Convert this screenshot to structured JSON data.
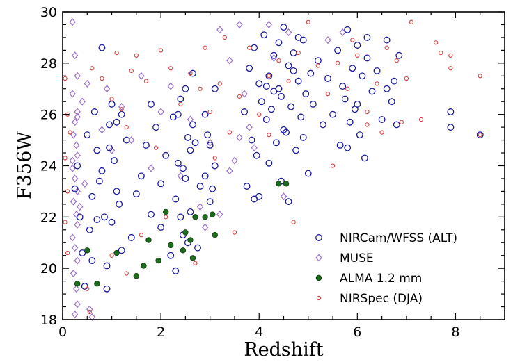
{
  "chart_data": {
    "type": "scatter",
    "title": "",
    "xlabel": "Redshift",
    "ylabel": "F356W",
    "xlim": [
      0,
      9
    ],
    "ylim": [
      18,
      30
    ],
    "x_ticks": [
      0,
      2,
      4,
      6,
      8
    ],
    "y_ticks": [
      18,
      20,
      22,
      24,
      26,
      28,
      30
    ],
    "grid": false,
    "legend_position": "bottom-right",
    "series": [
      {
        "name": "NIRCam/WFSS (ALT)",
        "marker": "open-circle",
        "color": "#1a1aa0",
        "points": [
          [
            0.25,
            23.1
          ],
          [
            0.3,
            24.0
          ],
          [
            0.35,
            22.0
          ],
          [
            0.4,
            20.6
          ],
          [
            0.5,
            25.2
          ],
          [
            0.55,
            21.5
          ],
          [
            0.6,
            22.8
          ],
          [
            0.7,
            24.6
          ],
          [
            0.75,
            23.4
          ],
          [
            0.8,
            28.6
          ],
          [
            0.85,
            22.0
          ],
          [
            0.9,
            20.1
          ],
          [
            0.95,
            25.6
          ],
          [
            1.0,
            26.4
          ],
          [
            1.05,
            24.2
          ],
          [
            1.1,
            23.0
          ],
          [
            1.15,
            22.5
          ],
          [
            1.2,
            20.7
          ],
          [
            1.3,
            25.0
          ],
          [
            1.4,
            21.2
          ],
          [
            0.45,
            19.3
          ],
          [
            0.65,
            26.1
          ],
          [
            0.9,
            19.2
          ],
          [
            1.0,
            21.8
          ],
          [
            1.1,
            25.7
          ],
          [
            0.6,
            20.3
          ],
          [
            0.8,
            23.8
          ],
          [
            0.95,
            24.7
          ],
          [
            1.2,
            26.0
          ],
          [
            0.7,
            21.9
          ],
          [
            1.5,
            22.9
          ],
          [
            1.6,
            23.6
          ],
          [
            1.7,
            24.8
          ],
          [
            1.8,
            22.1
          ],
          [
            1.9,
            25.5
          ],
          [
            2.0,
            21.6
          ],
          [
            2.1,
            24.4
          ],
          [
            2.2,
            20.5
          ],
          [
            2.25,
            25.9
          ],
          [
            2.3,
            22.7
          ],
          [
            2.35,
            24.1
          ],
          [
            2.4,
            26.6
          ],
          [
            2.45,
            21.3
          ],
          [
            2.5,
            23.5
          ],
          [
            2.55,
            25.1
          ],
          [
            2.6,
            22.2
          ],
          [
            2.65,
            27.6
          ],
          [
            2.7,
            24.9
          ],
          [
            2.75,
            20.8
          ],
          [
            2.8,
            23.2
          ],
          [
            2.3,
            19.9
          ],
          [
            2.4,
            22.0
          ],
          [
            2.5,
            27.0
          ],
          [
            2.6,
            24.6
          ],
          [
            2.45,
            23.9
          ],
          [
            2.35,
            26.0
          ],
          [
            2.55,
            21.0
          ],
          [
            2.65,
            25.6
          ],
          [
            2.0,
            23.3
          ],
          [
            1.8,
            26.4
          ],
          [
            2.9,
            26.0
          ],
          [
            3.0,
            24.8
          ],
          [
            3.05,
            23.1
          ],
          [
            3.1,
            27.0
          ],
          [
            3.0,
            22.6
          ],
          [
            2.95,
            25.2
          ],
          [
            3.1,
            24.0
          ],
          [
            2.9,
            23.6
          ],
          [
            3.7,
            26.1
          ],
          [
            3.75,
            23.2
          ],
          [
            3.8,
            27.8
          ],
          [
            3.85,
            25.0
          ],
          [
            3.9,
            28.6
          ],
          [
            3.95,
            24.4
          ],
          [
            4.0,
            27.2
          ],
          [
            4.0,
            22.8
          ],
          [
            4.05,
            26.5
          ],
          [
            3.9,
            22.7
          ],
          [
            4.1,
            29.1
          ],
          [
            4.15,
            25.8
          ],
          [
            4.2,
            27.5
          ],
          [
            4.25,
            26.2
          ],
          [
            4.3,
            28.3
          ],
          [
            4.35,
            24.9
          ],
          [
            4.4,
            27.0
          ],
          [
            4.45,
            26.7
          ],
          [
            4.5,
            29.4
          ],
          [
            4.55,
            25.3
          ],
          [
            4.6,
            27.9
          ],
          [
            4.65,
            26.3
          ],
          [
            4.7,
            28.4
          ],
          [
            4.75,
            24.6
          ],
          [
            4.8,
            27.3
          ],
          [
            4.85,
            25.9
          ],
          [
            4.9,
            28.9
          ],
          [
            4.95,
            26.8
          ],
          [
            5.0,
            23.7
          ],
          [
            5.05,
            27.6
          ],
          [
            4.2,
            24.1
          ],
          [
            4.4,
            28.8
          ],
          [
            4.6,
            22.6
          ],
          [
            4.8,
            29.0
          ],
          [
            4.3,
            26.9
          ],
          [
            4.5,
            25.4
          ],
          [
            4.7,
            27.7
          ],
          [
            4.9,
            25.1
          ],
          [
            4.15,
            27.1
          ],
          [
            4.45,
            23.4
          ],
          [
            5.1,
            26.4
          ],
          [
            5.2,
            28.1
          ],
          [
            5.3,
            25.6
          ],
          [
            5.4,
            27.4
          ],
          [
            5.5,
            26.0
          ],
          [
            5.6,
            28.5
          ],
          [
            5.65,
            24.8
          ],
          [
            5.7,
            27.1
          ],
          [
            5.75,
            26.6
          ],
          [
            5.8,
            29.3
          ],
          [
            5.85,
            25.7
          ],
          [
            5.9,
            27.8
          ],
          [
            5.95,
            26.2
          ],
          [
            6.0,
            28.7
          ],
          [
            6.05,
            25.2
          ],
          [
            6.1,
            27.5
          ],
          [
            6.15,
            24.3
          ],
          [
            6.2,
            28.2
          ],
          [
            6.3,
            26.9
          ],
          [
            6.4,
            27.7
          ],
          [
            6.5,
            25.8
          ],
          [
            6.6,
            28.9
          ],
          [
            6.7,
            26.5
          ],
          [
            6.75,
            27.3
          ],
          [
            6.8,
            25.6
          ],
          [
            6.85,
            28.3
          ],
          [
            6.2,
            29.0
          ],
          [
            5.8,
            24.7
          ],
          [
            6.0,
            26.4
          ],
          [
            6.6,
            27.0
          ],
          [
            7.9,
            26.1
          ],
          [
            7.9,
            25.5
          ],
          [
            8.5,
            25.2
          ]
        ]
      },
      {
        "name": "MUSE",
        "marker": "open-diamond",
        "color": "#9b6fc8",
        "points": [
          [
            0.2,
            29.6
          ],
          [
            0.25,
            28.3
          ],
          [
            0.3,
            27.5
          ],
          [
            0.2,
            26.8
          ],
          [
            0.3,
            26.1
          ],
          [
            0.25,
            25.7
          ],
          [
            0.22,
            25.2
          ],
          [
            0.28,
            24.8
          ],
          [
            0.3,
            24.4
          ],
          [
            0.2,
            23.9
          ],
          [
            0.25,
            23.5
          ],
          [
            0.3,
            23.0
          ],
          [
            0.22,
            22.6
          ],
          [
            0.28,
            22.1
          ],
          [
            0.3,
            21.7
          ],
          [
            0.2,
            21.2
          ],
          [
            0.25,
            20.8
          ],
          [
            0.3,
            20.3
          ],
          [
            0.22,
            19.8
          ],
          [
            0.28,
            19.2
          ],
          [
            0.3,
            18.6
          ],
          [
            0.25,
            18.2
          ],
          [
            0.2,
            24.2
          ],
          [
            0.3,
            25.9
          ],
          [
            0.35,
            22.4
          ],
          [
            0.4,
            26.5
          ],
          [
            0.45,
            23.3
          ],
          [
            0.5,
            27.2
          ],
          [
            0.55,
            18.4
          ],
          [
            0.6,
            18.1
          ],
          [
            0.8,
            25.4
          ],
          [
            0.9,
            27.0
          ],
          [
            1.0,
            24.6
          ],
          [
            1.2,
            26.3
          ],
          [
            1.4,
            25.0
          ],
          [
            1.6,
            27.5
          ],
          [
            1.8,
            23.9
          ],
          [
            2.0,
            26.1
          ],
          [
            2.2,
            27.1
          ],
          [
            2.4,
            23.6
          ],
          [
            2.6,
            25.8
          ],
          [
            2.8,
            22.4
          ],
          [
            3.0,
            24.9
          ],
          [
            3.2,
            29.3
          ],
          [
            3.4,
            28.1
          ],
          [
            3.5,
            24.2
          ],
          [
            3.6,
            25.1
          ],
          [
            3.7,
            26.8
          ],
          [
            3.8,
            25.5
          ],
          [
            3.9,
            24.7
          ],
          [
            3.6,
            29.5
          ],
          [
            4.2,
            29.5
          ],
          [
            4.6,
            29.2
          ],
          [
            4.3,
            28.2
          ],
          [
            4.5,
            22.8
          ],
          [
            5.4,
            28.9
          ],
          [
            5.7,
            29.2
          ],
          [
            3.4,
            23.8
          ],
          [
            3.2,
            22.1
          ],
          [
            2.9,
            21.6
          ]
        ]
      },
      {
        "name": "ALMA 1.2 mm",
        "marker": "filled-circle",
        "color": "#1e6b1e",
        "points": [
          [
            0.3,
            19.4
          ],
          [
            0.5,
            20.7
          ],
          [
            0.7,
            19.4
          ],
          [
            1.1,
            20.6
          ],
          [
            1.5,
            19.7
          ],
          [
            1.65,
            20.1
          ],
          [
            1.75,
            21.1
          ],
          [
            1.95,
            20.3
          ],
          [
            2.2,
            20.9
          ],
          [
            2.45,
            20.7
          ],
          [
            2.5,
            21.4
          ],
          [
            2.6,
            21.1
          ],
          [
            2.65,
            20.4
          ],
          [
            2.7,
            22.0
          ],
          [
            2.9,
            22.0
          ],
          [
            3.05,
            22.1
          ],
          [
            3.1,
            21.3
          ],
          [
            4.4,
            23.3
          ],
          [
            4.55,
            23.3
          ],
          [
            2.1,
            22.2
          ]
        ]
      },
      {
        "name": "NIRSpec (DJA)",
        "marker": "small-open-circle",
        "color": "#d94040",
        "points": [
          [
            0.05,
            27.4
          ],
          [
            0.1,
            26.0
          ],
          [
            0.15,
            25.3
          ],
          [
            0.05,
            24.3
          ],
          [
            0.1,
            23.0
          ],
          [
            0.05,
            21.8
          ],
          [
            0.1,
            20.6
          ],
          [
            0.5,
            19.2
          ],
          [
            0.55,
            18.3
          ],
          [
            0.8,
            27.4
          ],
          [
            1.0,
            26.6
          ],
          [
            1.2,
            26.2
          ],
          [
            1.4,
            27.7
          ],
          [
            1.5,
            28.3
          ],
          [
            1.7,
            27.3
          ],
          [
            2.0,
            28.5
          ],
          [
            2.2,
            27.8
          ],
          [
            2.4,
            26.4
          ],
          [
            2.6,
            27.6
          ],
          [
            2.8,
            27.0
          ],
          [
            3.0,
            26.1
          ],
          [
            3.2,
            27.2
          ],
          [
            3.4,
            25.3
          ],
          [
            3.6,
            26.7
          ],
          [
            3.8,
            28.6
          ],
          [
            4.0,
            26.0
          ],
          [
            4.2,
            27.5
          ],
          [
            4.4,
            28.1
          ],
          [
            4.6,
            27.3
          ],
          [
            4.8,
            28.4
          ],
          [
            5.0,
            29.6
          ],
          [
            5.2,
            27.9
          ],
          [
            5.4,
            26.8
          ],
          [
            5.6,
            28.0
          ],
          [
            5.8,
            27.0
          ],
          [
            6.0,
            28.3
          ],
          [
            6.2,
            26.1
          ],
          [
            6.4,
            27.2
          ],
          [
            6.6,
            28.6
          ],
          [
            6.8,
            28.1
          ],
          [
            7.1,
            29.6
          ],
          [
            7.6,
            28.8
          ],
          [
            7.7,
            28.4
          ],
          [
            7.9,
            28.3
          ],
          [
            7.9,
            27.8
          ],
          [
            8.5,
            27.5
          ],
          [
            8.5,
            25.2
          ],
          [
            6.9,
            25.7
          ],
          [
            7.3,
            25.8
          ],
          [
            1.0,
            20.5
          ],
          [
            1.3,
            19.8
          ],
          [
            1.6,
            21.3
          ],
          [
            2.1,
            22.0
          ],
          [
            2.7,
            20.2
          ],
          [
            3.1,
            24.3
          ],
          [
            3.5,
            21.4
          ],
          [
            4.7,
            21.8
          ],
          [
            4.2,
            25.2
          ],
          [
            5.5,
            24.0
          ],
          [
            6.2,
            25.6
          ],
          [
            7.0,
            27.4
          ],
          [
            1.9,
            24.7
          ],
          [
            2.9,
            28.6
          ],
          [
            3.3,
            29.0
          ],
          [
            0.6,
            27.8
          ],
          [
            1.1,
            28.4
          ],
          [
            1.3,
            25.5
          ],
          [
            5.9,
            28.9
          ],
          [
            6.5,
            25.3
          ]
        ]
      }
    ]
  }
}
